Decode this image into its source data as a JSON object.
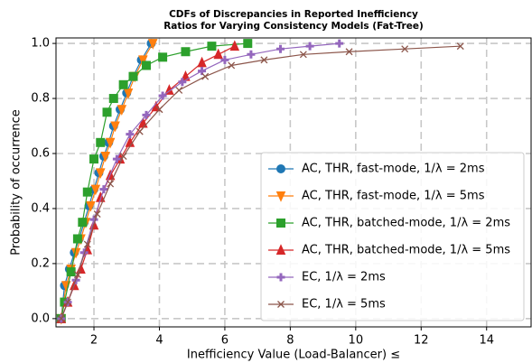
{
  "chart_data": {
    "type": "line",
    "title": [
      "CDFs of Discrepancies in Reported Inefficiency",
      "Ratios for Varying Consistency Models (Fat-Tree)"
    ],
    "xlabel": "Inefficiency Value (Load-Balancer) ≤",
    "ylabel": "Probability of occurrence",
    "xlim": [
      0.84,
      15.36
    ],
    "ylim": [
      -0.03,
      1.02
    ],
    "xticks": [
      2,
      4,
      6,
      8,
      10,
      12,
      14
    ],
    "yticks": [
      {
        "value": 0,
        "label": "0.0"
      },
      {
        "value": 0.2,
        "label": "0.2"
      },
      {
        "value": 0.4,
        "label": "0.4"
      },
      {
        "value": 0.6,
        "label": "0.6"
      },
      {
        "value": 0.8,
        "label": "0.8"
      },
      {
        "value": 1,
        "label": "1.0"
      }
    ],
    "grid": true,
    "legend": "lower-right",
    "series": [
      {
        "name": "AC, THR, fast-mode, 1/λ = 2ms",
        "color": "#1f77b4",
        "marker": "circle",
        "x": [
          1.0,
          1.1,
          1.25,
          1.4,
          1.55,
          1.7,
          1.85,
          2.0,
          2.15,
          2.3,
          2.45,
          2.6,
          2.8,
          3.0,
          3.2,
          3.45,
          3.75
        ],
        "values": [
          0,
          0.12,
          0.18,
          0.24,
          0.29,
          0.35,
          0.41,
          0.47,
          0.53,
          0.59,
          0.64,
          0.7,
          0.76,
          0.82,
          0.88,
          0.94,
          1.0
        ]
      },
      {
        "name": "AC, THR, fast-mode, 1/λ = 5ms",
        "color": "#ff7f0e",
        "marker": "triangle-down",
        "x": [
          1.0,
          1.15,
          1.3,
          1.45,
          1.6,
          1.75,
          1.9,
          2.05,
          2.2,
          2.35,
          2.5,
          2.65,
          2.85,
          3.05,
          3.25,
          3.5,
          3.8
        ],
        "values": [
          0,
          0.12,
          0.18,
          0.24,
          0.29,
          0.35,
          0.41,
          0.47,
          0.53,
          0.59,
          0.64,
          0.7,
          0.76,
          0.82,
          0.88,
          0.94,
          1.0
        ]
      },
      {
        "name": "AC, THR, batched-mode, 1/λ = 2ms",
        "color": "#2ca02c",
        "marker": "square",
        "x": [
          1.0,
          1.1,
          1.3,
          1.5,
          1.65,
          1.8,
          2.0,
          2.2,
          2.4,
          2.6,
          2.9,
          3.2,
          3.6,
          4.1,
          4.8,
          5.6,
          6.7
        ],
        "values": [
          0,
          0.06,
          0.17,
          0.29,
          0.35,
          0.46,
          0.58,
          0.64,
          0.75,
          0.8,
          0.85,
          0.88,
          0.92,
          0.95,
          0.97,
          0.99,
          1.0
        ]
      },
      {
        "name": "AC, THR, batched-mode, 1/λ = 5ms",
        "color": "#d62728",
        "marker": "triangle-up",
        "x": [
          1.0,
          1.2,
          1.4,
          1.6,
          1.8,
          2.0,
          2.2,
          2.5,
          2.8,
          3.1,
          3.5,
          3.9,
          4.3,
          4.8,
          5.3,
          5.8,
          6.3
        ],
        "values": [
          0,
          0.06,
          0.12,
          0.18,
          0.25,
          0.34,
          0.44,
          0.52,
          0.58,
          0.64,
          0.71,
          0.77,
          0.83,
          0.88,
          0.93,
          0.96,
          0.99
        ]
      },
      {
        "name": "EC, 1/λ = 2ms",
        "color": "#9467bd",
        "marker": "plus",
        "x": [
          1.0,
          1.2,
          1.45,
          1.7,
          2.0,
          2.3,
          2.7,
          3.1,
          3.6,
          4.1,
          4.7,
          5.3,
          6.0,
          6.8,
          7.7,
          8.6,
          9.5
        ],
        "values": [
          0,
          0.06,
          0.14,
          0.24,
          0.36,
          0.47,
          0.58,
          0.67,
          0.74,
          0.81,
          0.86,
          0.9,
          0.94,
          0.96,
          0.98,
          0.99,
          1.0
        ]
      },
      {
        "name": "EC, 1/λ = 5ms",
        "color": "#8c564b",
        "marker": "x",
        "x": [
          1.0,
          1.2,
          1.5,
          1.8,
          2.1,
          2.5,
          2.9,
          3.4,
          4.0,
          4.6,
          5.4,
          6.2,
          7.2,
          8.4,
          9.8,
          11.5,
          13.2
        ],
        "values": [
          0,
          0.06,
          0.16,
          0.27,
          0.38,
          0.49,
          0.59,
          0.68,
          0.76,
          0.83,
          0.88,
          0.92,
          0.94,
          0.96,
          0.97,
          0.98,
          0.99
        ]
      }
    ]
  }
}
